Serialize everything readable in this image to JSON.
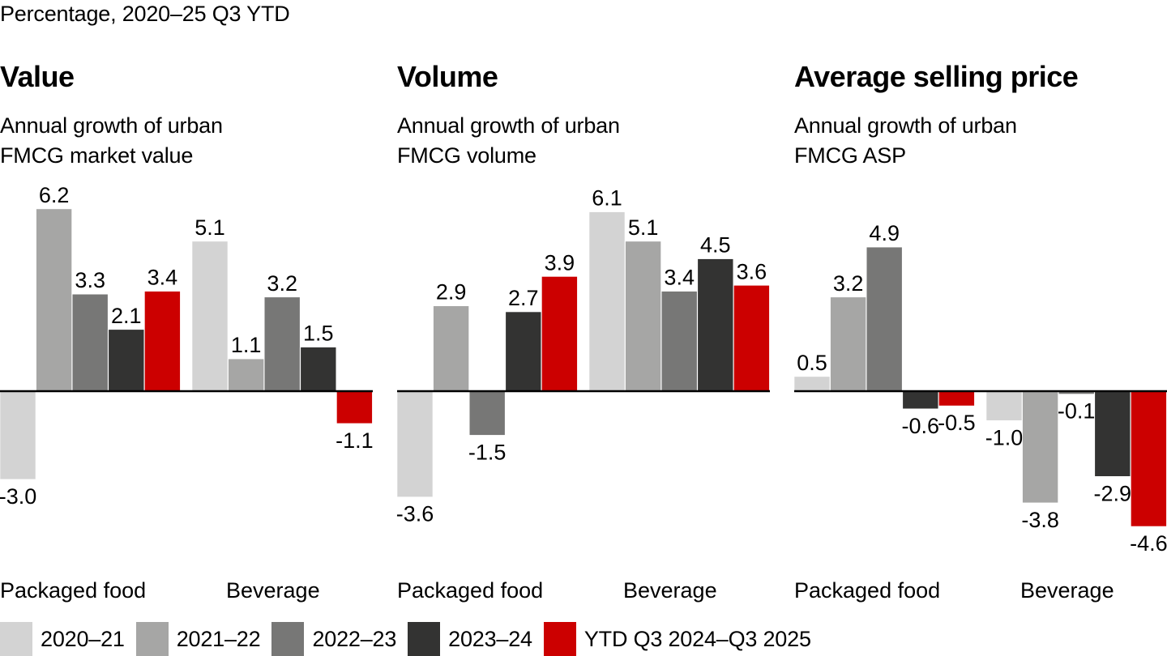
{
  "header": {
    "subtitle": "Percentage, 2020–25 Q3 YTD"
  },
  "panels": [
    {
      "title": "Value",
      "desc_line1": "Annual growth of urban",
      "desc_line2": "FMCG market value"
    },
    {
      "title": "Volume",
      "desc_line1": "Annual growth of urban",
      "desc_line2": "FMCG volume"
    },
    {
      "title": "Average selling price",
      "desc_line1": "Annual growth of urban",
      "desc_line2": "FMCG ASP"
    }
  ],
  "legend": [
    {
      "label": "2020–21",
      "color": "#d3d3d3"
    },
    {
      "label": "2021–22",
      "color": "#a6a6a5"
    },
    {
      "label": "2022–23",
      "color": "#777776"
    },
    {
      "label": "2023–24",
      "color": "#333332"
    },
    {
      "label": "YTD Q3 2024–Q3 2025",
      "color": "#cc0000"
    }
  ],
  "chart_data": [
    {
      "type": "bar",
      "title": "Value",
      "subtitle": "Annual growth of urban FMCG market value",
      "categories": [
        "Packaged food",
        "Beverage"
      ],
      "series": [
        {
          "name": "2020–21",
          "values": [
            -3.0,
            5.1
          ]
        },
        {
          "name": "2021–22",
          "values": [
            6.2,
            1.1
          ]
        },
        {
          "name": "2022–23",
          "values": [
            3.3,
            3.2
          ]
        },
        {
          "name": "2023–24",
          "values": [
            2.1,
            1.5
          ]
        },
        {
          "name": "YTD Q3 2024–Q3 2025",
          "values": [
            3.4,
            -1.1
          ]
        }
      ],
      "xlabel": "",
      "ylabel": "Percentage",
      "ylim": [
        -4.6,
        6.2
      ],
      "grid": false,
      "legend": "bottom"
    },
    {
      "type": "bar",
      "title": "Volume",
      "subtitle": "Annual growth of urban FMCG volume",
      "categories": [
        "Packaged food",
        "Beverage"
      ],
      "series": [
        {
          "name": "2020–21",
          "values": [
            -3.6,
            6.1
          ]
        },
        {
          "name": "2021–22",
          "values": [
            2.9,
            5.1
          ]
        },
        {
          "name": "2022–23",
          "values": [
            -1.5,
            3.4
          ]
        },
        {
          "name": "2023–24",
          "values": [
            2.7,
            4.5
          ]
        },
        {
          "name": "YTD Q3 2024–Q3 2025",
          "values": [
            3.9,
            3.6
          ]
        }
      ],
      "xlabel": "",
      "ylabel": "Percentage",
      "ylim": [
        -4.6,
        6.2
      ],
      "grid": false,
      "legend": "bottom"
    },
    {
      "type": "bar",
      "title": "Average selling price",
      "subtitle": "Annual growth of urban FMCG ASP",
      "categories": [
        "Packaged food",
        "Beverage"
      ],
      "series": [
        {
          "name": "2020–21",
          "values": [
            0.5,
            -1.0
          ]
        },
        {
          "name": "2021–22",
          "values": [
            3.2,
            -3.8
          ]
        },
        {
          "name": "2022–23",
          "values": [
            4.9,
            -0.1
          ]
        },
        {
          "name": "2023–24",
          "values": [
            -0.6,
            -2.9
          ]
        },
        {
          "name": "YTD Q3 2024–Q3 2025",
          "values": [
            -0.5,
            -4.6
          ]
        }
      ],
      "xlabel": "",
      "ylabel": "Percentage",
      "ylim": [
        -4.6,
        6.2
      ],
      "grid": false,
      "legend": "bottom"
    }
  ]
}
